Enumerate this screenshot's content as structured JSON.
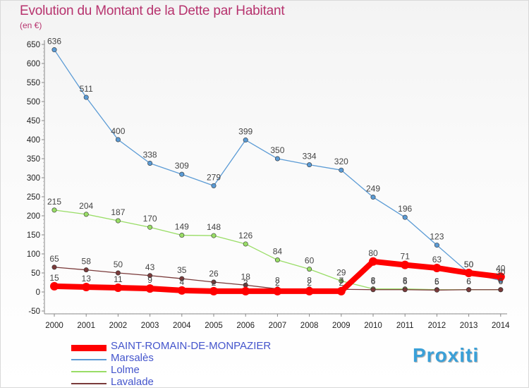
{
  "title": "Evolution du Montant de la Dette par Habitant",
  "unit": "(en €)",
  "logo_text": "Proxiti",
  "colors": {
    "title": "#b7336e",
    "saint_romain": "#ff0000",
    "marsales": "#5b9bd5",
    "lolme": "#99dd66",
    "lavalade": "#7a3a3a"
  },
  "chart_data": {
    "type": "line",
    "title": "Evolution du Montant de la Dette par Habitant",
    "ylabel": "(en €)",
    "xlabel": "",
    "ylim": [
      -50,
      650
    ],
    "y_ticks": [
      -50,
      0,
      50,
      100,
      150,
      200,
      250,
      300,
      350,
      400,
      450,
      500,
      550,
      600,
      650
    ],
    "grid": false,
    "legend_position": "bottom-left",
    "x": [
      "2000",
      "2001",
      "2002",
      "2003",
      "2004",
      "2005",
      "2006",
      "2007",
      "2008",
      "2009",
      "2010",
      "2011",
      "2012",
      "2013",
      "2014"
    ],
    "series": [
      {
        "name": "SAINT-ROMAIN-DE-MONPAZIER",
        "color": "#ff0000",
        "values": [
          15,
          13,
          11,
          9,
          4,
          2,
          2,
          2,
          2,
          2,
          80,
          71,
          63,
          50,
          40
        ],
        "labels": [
          "15",
          "13",
          "11",
          "9",
          "4",
          "2",
          "2",
          "2",
          "2",
          "2",
          "80",
          "71",
          "63",
          "50",
          "40"
        ]
      },
      {
        "name": "Marsalès",
        "color": "#5b9bd5",
        "values": [
          636,
          511,
          400,
          338,
          309,
          279,
          399,
          350,
          334,
          320,
          249,
          196,
          123,
          50,
          30
        ],
        "labels": [
          "636",
          "511",
          "400",
          "338",
          "309",
          "279",
          "399",
          "350",
          "334",
          "320",
          "249",
          "196",
          "123",
          "50",
          "30"
        ]
      },
      {
        "name": "Lolme",
        "color": "#99dd66",
        "values": [
          215,
          204,
          187,
          170,
          149,
          148,
          126,
          84,
          60,
          29,
          8,
          8,
          6,
          6,
          6
        ],
        "labels": [
          "215",
          "204",
          "187",
          "170",
          "149",
          "148",
          "126",
          "84",
          "60",
          "29",
          "8",
          "8",
          "6",
          "6",
          "6"
        ]
      },
      {
        "name": "Lavalade",
        "color": "#7a3a3a",
        "values": [
          65,
          58,
          50,
          43,
          35,
          26,
          18,
          8,
          8,
          7,
          6,
          6,
          5,
          6,
          6
        ],
        "labels": [
          "65",
          "58",
          "50",
          "43",
          "35",
          "26",
          "18",
          "8",
          "8",
          "7",
          "6",
          "6",
          "5",
          "6",
          "6"
        ]
      }
    ]
  }
}
